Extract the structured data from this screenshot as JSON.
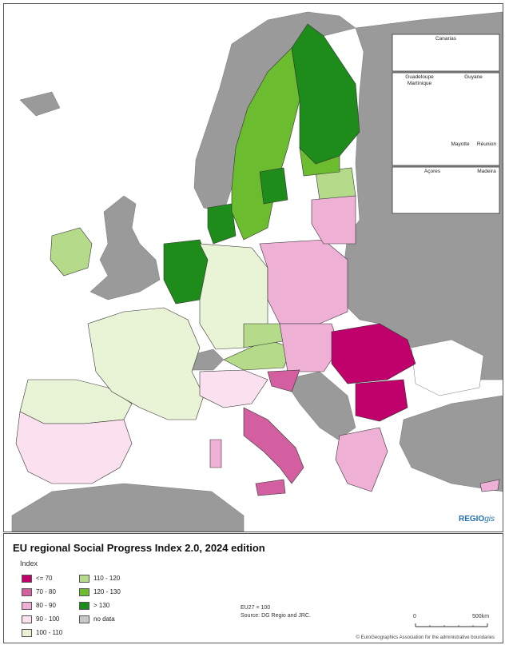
{
  "map": {
    "brand_bold": "REGIO",
    "brand_italic": "gis",
    "insets": {
      "canarias": "Canarias",
      "guadeloupe": "Guadeloupe",
      "martinique": "Martinique",
      "guyane": "Guyane",
      "mayotte": "Mayotte",
      "reunion": "Réunion",
      "acores": "Açores",
      "madeira": "Madeira"
    },
    "colors": {
      "sea": "#ffffff",
      "non_eu_land": "#9a9a9a",
      "border": "#333333"
    }
  },
  "legend": {
    "title": "EU regional Social Progress Index 2.0, 2024 edition",
    "index_label": "Index",
    "classes_left": [
      {
        "label": "<= 70",
        "color": "#c0006b"
      },
      {
        "label": "70 - 80",
        "color": "#d35fa0"
      },
      {
        "label": "80 - 90",
        "color": "#eeb0d5"
      },
      {
        "label": "90 - 100",
        "color": "#fbe0ef"
      },
      {
        "label": "100 - 110",
        "color": "#e9f3d6"
      }
    ],
    "classes_right": [
      {
        "label": "110 - 120",
        "color": "#b4da8a"
      },
      {
        "label": "120 - 130",
        "color": "#6cbc2f"
      },
      {
        "label": "> 130",
        "color": "#1e8c1a"
      },
      {
        "label": "no data",
        "color": "#c8c8c8"
      }
    ],
    "note_eu": "EU27 = 100",
    "note_source": "Source: DG Regio and JRC.",
    "scale_zero": "0",
    "scale_max": "500",
    "scale_unit": "km",
    "copyright": "© EuroGeographics Association for the administrative boundaries"
  }
}
